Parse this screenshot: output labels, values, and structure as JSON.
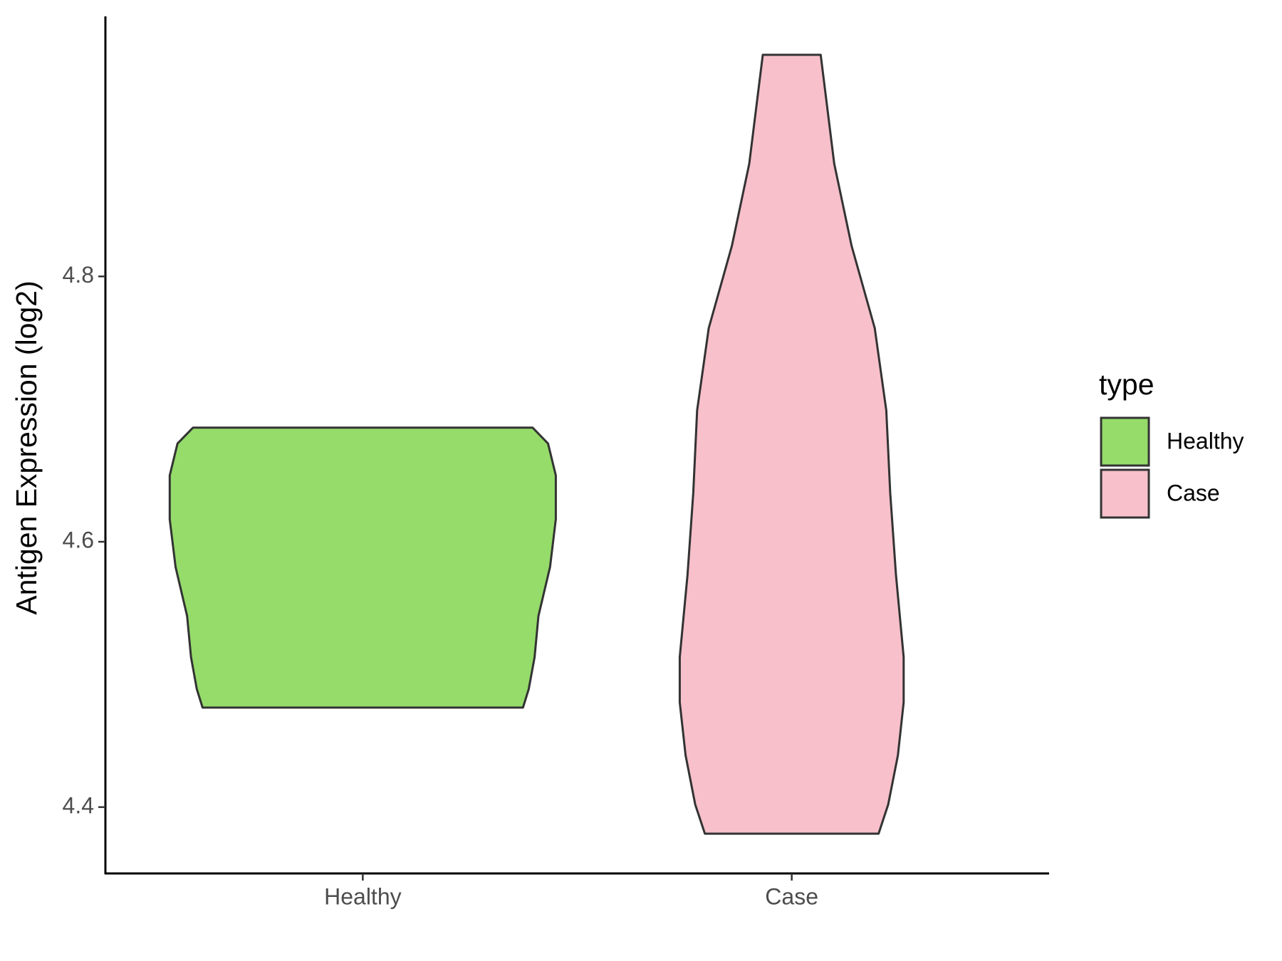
{
  "chart_data": {
    "type": "violin",
    "y_label": "Antigen Expression (log2)",
    "categories": [
      "Healthy",
      "Case"
    ],
    "legend_title": "type",
    "legend": "right",
    "ylim": [
      4.35,
      4.996
    ],
    "yticks": [
      4.4,
      4.6,
      4.8
    ],
    "series": [
      {
        "name": "Healthy",
        "color": "#95DC6A",
        "y": [
          4.686,
          4.674,
          4.65,
          4.617,
          4.581,
          4.544,
          4.513,
          4.489,
          4.475
        ],
        "width": [
          0.88,
          0.96,
          1,
          1,
          0.97,
          0.91,
          0.89,
          0.86,
          0.83
        ]
      },
      {
        "name": "Case",
        "color": "#F7C0CB",
        "y": [
          4.967,
          4.885,
          4.823,
          4.761,
          4.699,
          4.637,
          4.575,
          4.513,
          4.479,
          4.439,
          4.402,
          4.38
        ],
        "width": [
          0.15,
          0.22,
          0.31,
          0.43,
          0.49,
          0.51,
          0.54,
          0.58,
          0.58,
          0.55,
          0.5,
          0.45
        ]
      }
    ]
  }
}
